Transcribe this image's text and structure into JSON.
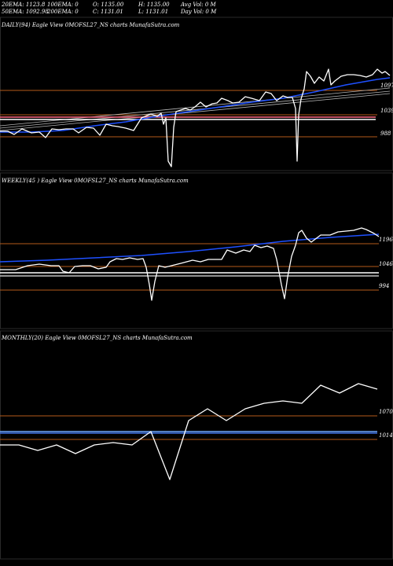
{
  "header": {
    "row1": [
      "20EMA: 1123.8",
      "100EMA: 0",
      "O: 1135.00",
      "H: 1135.00",
      "Avg Vol: 0  M"
    ],
    "row2": [
      "50EMA: 1092.98",
      "200EMA: 0",
      "C: 1131.01",
      "L: 1131.01",
      "Day Vol: 0  M"
    ]
  },
  "chart_data": [
    {
      "type": "line",
      "title": "DAILY(94) Eagle  View  0MOFSL27_NS charts MunafaSutra.com",
      "y_ticks": [
        "1097",
        "1039",
        "988"
      ],
      "series": [
        {
          "name": "price",
          "color": "#ffffff",
          "points": [
            [
              0,
              167
            ],
            [
              10,
              167
            ],
            [
              18,
              171
            ],
            [
              28,
              164
            ],
            [
              40,
              169
            ],
            [
              50,
              168
            ],
            [
              58,
              175
            ],
            [
              66,
              164
            ],
            [
              75,
              165
            ],
            [
              84,
              164
            ],
            [
              93,
              164
            ],
            [
              100,
              169
            ],
            [
              110,
              162
            ],
            [
              119,
              163
            ],
            [
              127,
              172
            ],
            [
              135,
              158
            ],
            [
              143,
              160
            ],
            [
              150,
              161
            ],
            [
              160,
              163
            ],
            [
              170,
              166
            ],
            [
              180,
              150
            ],
            [
              192,
              145
            ],
            [
              200,
              148
            ],
            [
              205,
              144
            ],
            [
              208,
              158
            ],
            [
              211,
              150
            ],
            [
              214,
              205
            ],
            [
              218,
              212
            ],
            [
              221,
              162
            ],
            [
              224,
              142
            ],
            [
              230,
              140
            ],
            [
              236,
              138
            ],
            [
              242,
              140
            ],
            [
              248,
              136
            ],
            [
              255,
              130
            ],
            [
              262,
              136
            ],
            [
              270,
              132
            ],
            [
              276,
              131
            ],
            [
              282,
              125
            ],
            [
              290,
              128
            ],
            [
              296,
              131
            ],
            [
              304,
              130
            ],
            [
              312,
              123
            ],
            [
              320,
              125
            ],
            [
              330,
              128
            ],
            [
              338,
              117
            ],
            [
              345,
              119
            ],
            [
              352,
              128
            ],
            [
              360,
              122
            ],
            [
              366,
              124
            ],
            [
              372,
              124
            ],
            [
              376,
              138
            ],
            [
              378,
              205
            ],
            [
              380,
              146
            ],
            [
              383,
              126
            ],
            [
              387,
              113
            ],
            [
              390,
              91
            ],
            [
              395,
              97
            ],
            [
              400,
              106
            ],
            [
              406,
              98
            ],
            [
              412,
              103
            ],
            [
              418,
              88
            ],
            [
              421,
              108
            ],
            [
              426,
              103
            ],
            [
              434,
              97
            ],
            [
              442,
              95
            ],
            [
              450,
              95
            ],
            [
              458,
              96
            ],
            [
              466,
              98
            ],
            [
              474,
              95
            ],
            [
              480,
              88
            ],
            [
              486,
              93
            ],
            [
              490,
              91
            ],
            [
              496,
              96
            ]
          ]
        },
        {
          "name": "ema",
          "color": "#1e50ff",
          "points": [
            [
              0,
              168
            ],
            [
              40,
              168
            ],
            [
              80,
              166
            ],
            [
              120,
              160
            ],
            [
              160,
              155
            ],
            [
              200,
              148
            ],
            [
              240,
              142
            ],
            [
              280,
              136
            ],
            [
              320,
              130
            ],
            [
              360,
              125
            ],
            [
              400,
              117
            ],
            [
              440,
              108
            ],
            [
              480,
              101
            ],
            [
              496,
              99
            ]
          ]
        },
        {
          "name": "trend1",
          "color": "#b4b4b4",
          "points": [
            [
              0,
              160
            ],
            [
              496,
              112
            ]
          ]
        },
        {
          "name": "trend2",
          "color": "#b4b4b4",
          "points": [
            [
              0,
              163
            ],
            [
              496,
              116
            ]
          ]
        },
        {
          "name": "trend3",
          "color": "#b4b4b4",
          "points": [
            [
              0,
              166
            ],
            [
              496,
              119
            ]
          ]
        },
        {
          "name": "level-pink",
          "color": "#ff6b86",
          "points": [
            [
              0,
              149
            ],
            [
              478,
              149
            ]
          ]
        },
        {
          "name": "level-white",
          "color": "#ffffff",
          "points": [
            [
              0,
              152
            ],
            [
              478,
              152
            ]
          ]
        }
      ],
      "hlines": [
        {
          "y": 115,
          "color": "#b35a1a"
        },
        {
          "y": 146,
          "color": "#b35a1a"
        },
        {
          "y": 174,
          "color": "#b35a1a"
        }
      ]
    },
    {
      "type": "line",
      "title": "WEEKLY(45                    ) Eagle  View  0MOFSL27_NS charts MunafaSutra.com",
      "y_ticks": [
        "1196",
        "1046",
        "994"
      ],
      "series": [
        {
          "name": "price",
          "color": "#ffffff",
          "points": [
            [
              0,
              343
            ],
            [
              20,
              343
            ],
            [
              35,
              338
            ],
            [
              50,
              336
            ],
            [
              65,
              338
            ],
            [
              75,
              338
            ],
            [
              80,
              345
            ],
            [
              88,
              347
            ],
            [
              95,
              339
            ],
            [
              105,
              338
            ],
            [
              115,
              338
            ],
            [
              125,
              342
            ],
            [
              135,
              340
            ],
            [
              140,
              333
            ],
            [
              148,
              329
            ],
            [
              156,
              330
            ],
            [
              165,
              328
            ],
            [
              175,
              330
            ],
            [
              182,
              329
            ],
            [
              186,
              340
            ],
            [
              190,
              362
            ],
            [
              193,
              382
            ],
            [
              197,
              358
            ],
            [
              202,
              338
            ],
            [
              210,
              340
            ],
            [
              218,
              338
            ],
            [
              230,
              335
            ],
            [
              245,
              331
            ],
            [
              255,
              333
            ],
            [
              265,
              330
            ],
            [
              275,
              330
            ],
            [
              282,
              330
            ],
            [
              289,
              318
            ],
            [
              300,
              322
            ],
            [
              310,
              318
            ],
            [
              318,
              320
            ],
            [
              324,
              312
            ],
            [
              332,
              315
            ],
            [
              340,
              313
            ],
            [
              348,
              316
            ],
            [
              352,
              330
            ],
            [
              358,
              362
            ],
            [
              362,
              380
            ],
            [
              366,
              352
            ],
            [
              371,
              326
            ],
            [
              376,
              312
            ],
            [
              380,
              296
            ],
            [
              384,
              293
            ],
            [
              390,
              303
            ],
            [
              396,
              308
            ],
            [
              408,
              299
            ],
            [
              420,
              299
            ],
            [
              430,
              295
            ],
            [
              440,
              294
            ],
            [
              450,
              293
            ],
            [
              460,
              290
            ],
            [
              466,
              292
            ],
            [
              476,
              297
            ],
            [
              482,
              301
            ]
          ]
        },
        {
          "name": "ema",
          "color": "#1e50ff",
          "points": [
            [
              0,
              333
            ],
            [
              60,
              331
            ],
            [
              120,
              328
            ],
            [
              180,
              325
            ],
            [
              240,
              320
            ],
            [
              300,
              314
            ],
            [
              360,
              307
            ],
            [
              420,
              302
            ],
            [
              482,
              298
            ]
          ]
        },
        {
          "name": "level-white",
          "color": "#ffffff",
          "points": [
            [
              0,
              347
            ],
            [
              482,
              347
            ]
          ]
        },
        {
          "name": "level-gray",
          "color": "#bfbfbf",
          "points": [
            [
              0,
              351
            ],
            [
              482,
              351
            ]
          ]
        }
      ],
      "hlines": [
        {
          "y": 310,
          "color": "#b35a1a"
        },
        {
          "y": 339,
          "color": "#b35a1a"
        },
        {
          "y": 369,
          "color": "#b35a1a"
        }
      ]
    },
    {
      "type": "line",
      "title": "MONTHLY(20) Eagle  View  0MOFSL27_NS charts MunafaSutra.com",
      "y_ticks": [
        "1070",
        "1014"
      ],
      "series": [
        {
          "name": "price",
          "color": "#ffffff",
          "points": [
            [
              0,
              566
            ],
            [
              24,
              566
            ],
            [
              48,
              573
            ],
            [
              72,
              566
            ],
            [
              96,
              577
            ],
            [
              120,
              566
            ],
            [
              144,
              563
            ],
            [
              168,
              566
            ],
            [
              192,
              549
            ],
            [
              216,
              610
            ],
            [
              240,
              535
            ],
            [
              264,
              520
            ],
            [
              288,
              535
            ],
            [
              312,
              520
            ],
            [
              336,
              513
            ],
            [
              360,
              510
            ],
            [
              384,
              513
            ],
            [
              408,
              490
            ],
            [
              432,
              500
            ],
            [
              456,
              488
            ],
            [
              480,
              495
            ]
          ]
        },
        {
          "name": "level-blue",
          "color": "#6fa8ff",
          "points": [
            [
              0,
              549
            ],
            [
              480,
              549
            ]
          ]
        },
        {
          "name": "level-blue2",
          "color": "#3d6fe0",
          "points": [
            [
              0,
              551
            ],
            [
              480,
              551
            ]
          ]
        }
      ],
      "hlines": [
        {
          "y": 529,
          "color": "#b35a1a"
        },
        {
          "y": 559,
          "color": "#b35a1a"
        }
      ]
    }
  ]
}
